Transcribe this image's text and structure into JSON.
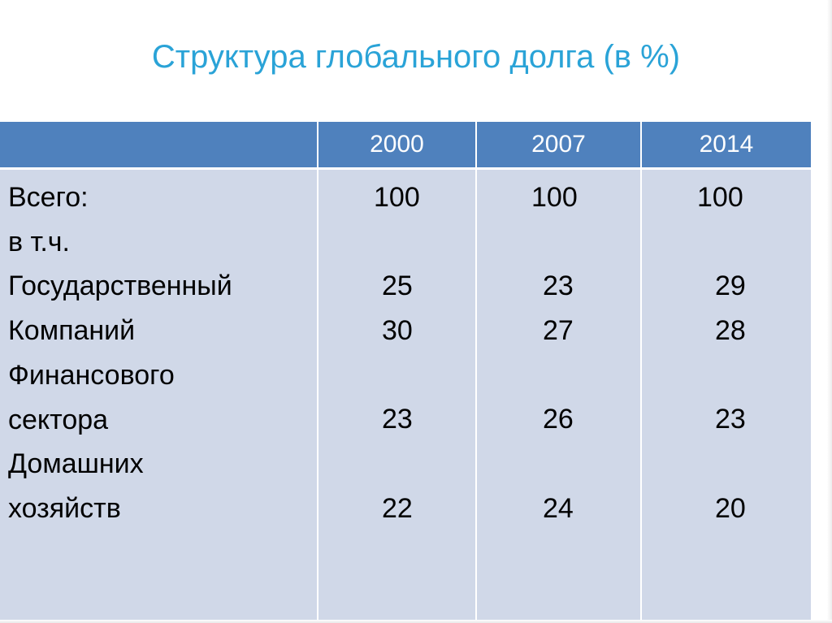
{
  "title": "Структура глобального долга (в %)",
  "table": {
    "years": [
      "2000",
      "2007",
      "2014"
    ],
    "labels": [
      "Всего:",
      "в т.ч.",
      "Государственный",
      "Компаний",
      "Финансового",
      "сектора",
      "Домашних",
      "хозяйств"
    ],
    "values": {
      "y2000": {
        "total": "100",
        "government": "25",
        "companies": "30",
        "financial": "23",
        "households": "22"
      },
      "y2007": {
        "total": "100",
        "government": "23",
        "companies": "27",
        "financial": "26",
        "households": "24"
      },
      "y2014": {
        "total": "100",
        "government": "29",
        "companies": "28",
        "financial": "23",
        "households": "20"
      }
    }
  },
  "colors": {
    "title": "#2aa3d7",
    "header_bg": "#4f81bd",
    "body_bg": "#d0d8e8",
    "header_text": "#ffffff"
  }
}
